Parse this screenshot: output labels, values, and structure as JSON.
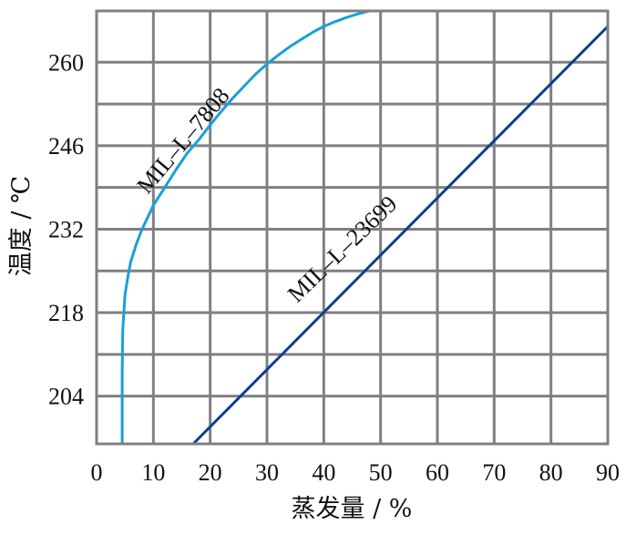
{
  "chart_data": {
    "type": "line",
    "xlabel": "蒸发量 / %",
    "ylabel": "温度 / ℃",
    "x_ticks": [
      "0",
      "10",
      "20",
      "30",
      "40",
      "50",
      "60",
      "70",
      "80",
      "90"
    ],
    "y_ticks": [
      "204",
      "218",
      "232",
      "246",
      "260"
    ],
    "xlim": [
      0,
      90
    ],
    "ylim": [
      196,
      268.6
    ],
    "grid": true,
    "grid_x": [
      10,
      20,
      30,
      40,
      50,
      60,
      70,
      80
    ],
    "grid_y": [
      204,
      211,
      218,
      225,
      232,
      239,
      246,
      253,
      260
    ],
    "grid_color": "#808080",
    "series": [
      {
        "name": "MIL–L–7808",
        "color": "#1a9fd9",
        "x": [
          4.5,
          4.5,
          4.6,
          5.0,
          5.5,
          6.0,
          7.0,
          8.0,
          10.0,
          12.0,
          14.0,
          16.0,
          18.0,
          20.0,
          22.0,
          24.0,
          26.0,
          28.0,
          30.0,
          32.0,
          34.0,
          36.0,
          38.0,
          40.0,
          42.0,
          44.0,
          46.0,
          48.0
        ],
        "y": [
          196.0,
          208.0,
          215.0,
          221.0,
          224.0,
          226.5,
          229.5,
          232.0,
          236.0,
          239.0,
          242.0,
          244.8,
          247.0,
          249.5,
          251.8,
          254.0,
          256.0,
          258.0,
          259.7,
          261.2,
          262.6,
          263.8,
          265.0,
          266.0,
          266.8,
          267.5,
          268.1,
          268.6
        ]
      },
      {
        "name": "MIL–L–23699",
        "color": "#0d3f8f",
        "x": [
          17.0,
          90.0
        ],
        "y": [
          196.0,
          266.0
        ]
      }
    ]
  }
}
